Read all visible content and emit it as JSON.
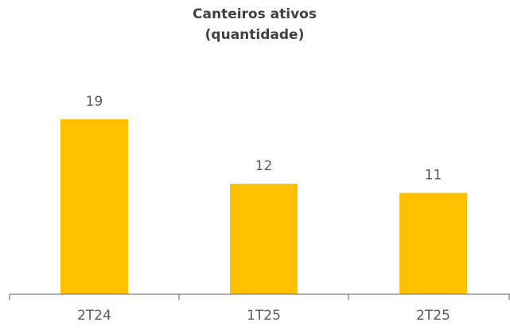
{
  "chart_data": {
    "type": "bar",
    "title": "Canteiros ativos",
    "subtitle": "(quantidade)",
    "categories": [
      "2T24",
      "1T25",
      "2T25"
    ],
    "values": [
      19,
      12,
      11
    ],
    "color": "#FFC000",
    "ylim": [
      0,
      20
    ]
  }
}
